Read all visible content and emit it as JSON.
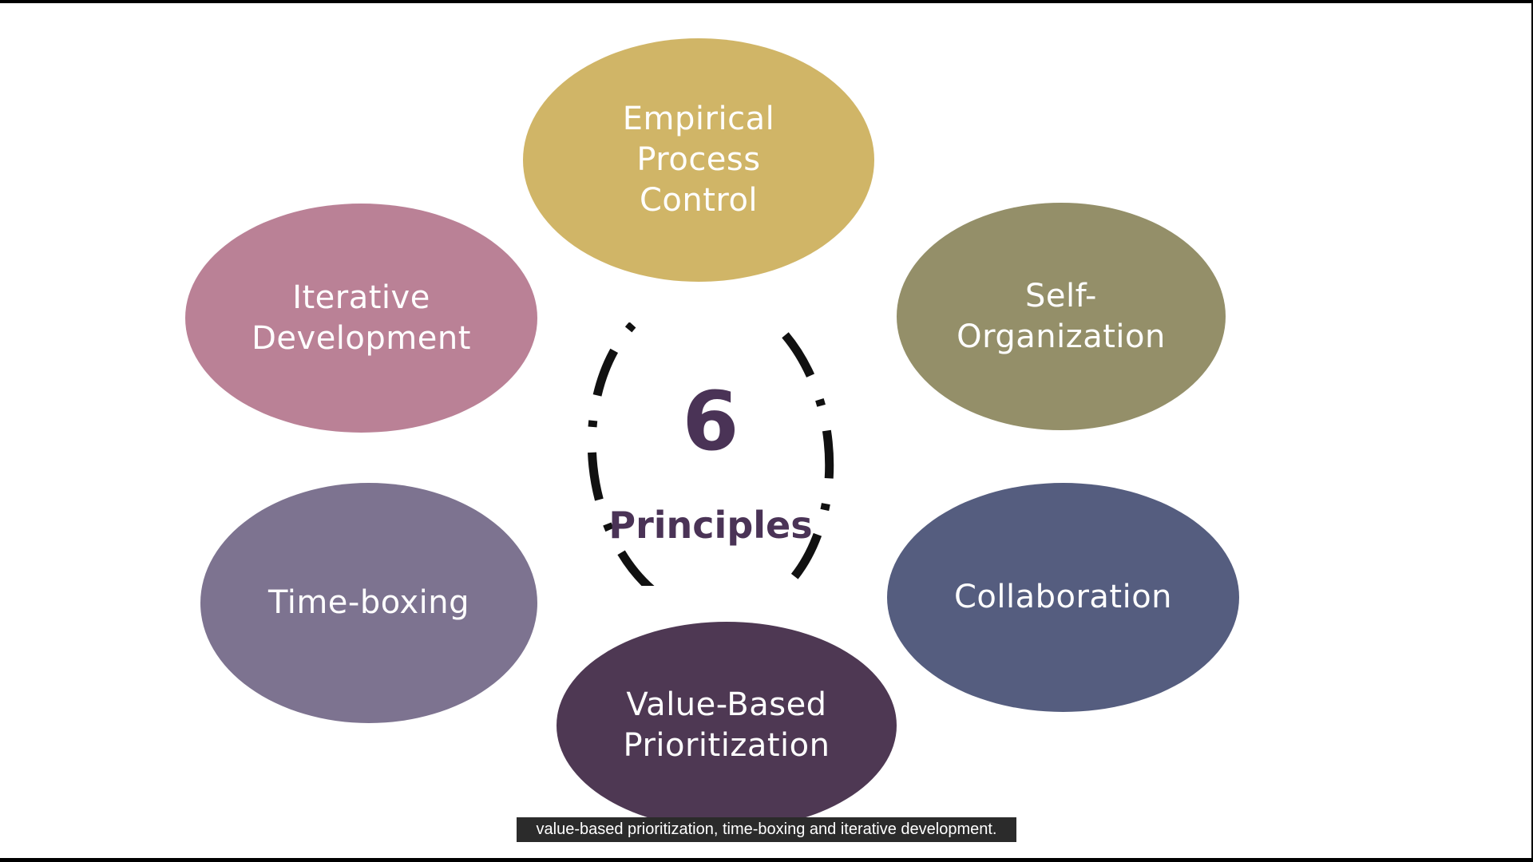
{
  "center": {
    "number": "6",
    "label": "Principles",
    "text_color": "#4a3356",
    "ring_color": "#111111"
  },
  "principles": [
    {
      "label": "Empirical\nProcess\nControl",
      "color": "#d0b567"
    },
    {
      "label": "Self-\nOrganization",
      "color": "#948f69"
    },
    {
      "label": "Collaboration",
      "color": "#555d7f"
    },
    {
      "label": "Value-Based\nPrioritization",
      "color": "#4e3853"
    },
    {
      "label": "Time-boxing",
      "color": "#7d7390"
    },
    {
      "label": "Iterative\nDevelopment",
      "color": "#ba8196"
    }
  ],
  "subtitle": "value-based prioritization, time-boxing and iterative development."
}
